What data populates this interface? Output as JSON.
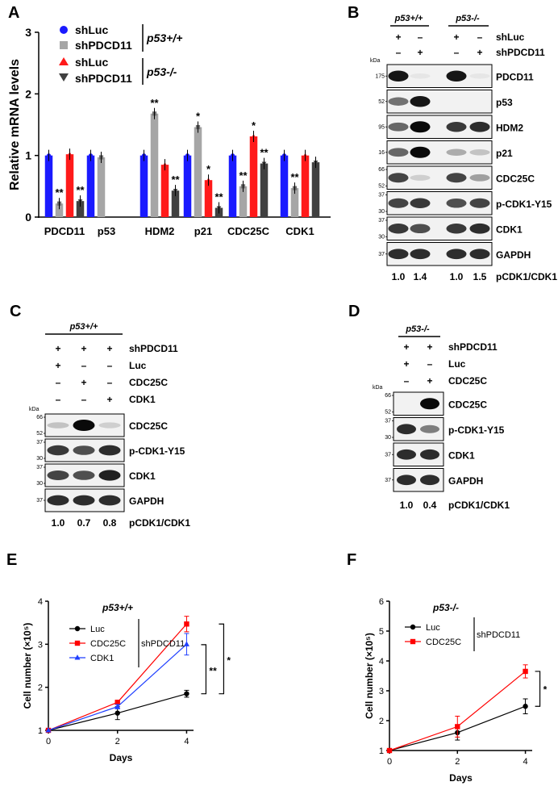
{
  "panels": {
    "A": "A",
    "B": "B",
    "C": "C",
    "D": "D",
    "E": "E",
    "F": "F"
  },
  "panelA": {
    "legend": [
      {
        "name": "shLuc",
        "color": "#1a1aff",
        "marker": "circle"
      },
      {
        "name": "shPDCD11",
        "color": "#a6a6a6",
        "marker": "square"
      },
      {
        "name": "shLuc",
        "color": "#ff1a1a",
        "marker": "triangle-up"
      },
      {
        "name": "shPDCD11",
        "color": "#404040",
        "marker": "triangle-down"
      }
    ],
    "group_labels": [
      "p53+/+",
      "p53-/-"
    ],
    "sig": {
      "double": "**",
      "single": "*"
    }
  },
  "chart_data": [
    {
      "id": "A",
      "type": "bar",
      "ylabel": "Relative mRNA levels",
      "ylim": [
        0,
        3
      ],
      "yticks": [
        0,
        1,
        2,
        3
      ],
      "categories": [
        "PDCD11",
        "p53",
        "HDM2",
        "p21",
        "CDC25C",
        "CDK1"
      ],
      "series": [
        {
          "name": "shLuc",
          "color": "#1a1aff",
          "values": [
            1.0,
            1.0,
            1.0,
            1.0,
            1.0,
            1.0
          ]
        },
        {
          "name": "shPDCD11",
          "color": "#a6a6a6",
          "values": [
            0.22,
            0.97,
            1.68,
            1.46,
            0.5,
            0.47
          ]
        },
        {
          "name": "shLuc",
          "color": "#ff1a1a",
          "values": [
            1.02,
            null,
            0.85,
            0.6,
            1.31,
            1.0
          ]
        },
        {
          "name": "shPDCD11",
          "color": "#404040",
          "values": [
            0.26,
            null,
            0.43,
            0.15,
            0.87,
            0.89
          ]
        }
      ],
      "annotations": [
        {
          "category": "PDCD11",
          "series": 1,
          "text": "**"
        },
        {
          "category": "PDCD11",
          "series": 3,
          "text": "**"
        },
        {
          "category": "HDM2",
          "series": 1,
          "text": "**"
        },
        {
          "category": "HDM2",
          "series": 3,
          "text": "**"
        },
        {
          "category": "p21",
          "series": 1,
          "text": "*"
        },
        {
          "category": "p21",
          "series": 2,
          "text": "*"
        },
        {
          "category": "p21",
          "series": 3,
          "text": "**"
        },
        {
          "category": "CDC25C",
          "series": 1,
          "text": "**"
        },
        {
          "category": "CDC25C",
          "series": 2,
          "text": "*"
        },
        {
          "category": "CDC25C",
          "series": 3,
          "text": "**"
        },
        {
          "category": "CDK1",
          "series": 1,
          "text": "**"
        }
      ]
    },
    {
      "id": "E",
      "type": "line",
      "title": "p53+/+",
      "xlabel": "Days",
      "ylabel": "Cell number (×10⁵)",
      "x": [
        0,
        2,
        4
      ],
      "xlim": [
        0,
        4.2
      ],
      "ylim": [
        1,
        4
      ],
      "xticks": [
        0,
        2,
        4
      ],
      "yticks": [
        1,
        2,
        3,
        4
      ],
      "legend_group": "shPDCD11",
      "series": [
        {
          "name": "Luc",
          "color": "#000000",
          "marker": "circle",
          "values": [
            1.0,
            1.4,
            1.85
          ],
          "err": [
            0,
            0.15,
            0.08
          ]
        },
        {
          "name": "CDC25C",
          "color": "#ff0000",
          "marker": "square",
          "values": [
            1.0,
            1.65,
            3.47
          ],
          "err": [
            0,
            0.05,
            0.18
          ]
        },
        {
          "name": "CDK1",
          "color": "#1f3fff",
          "marker": "triangle-up",
          "values": [
            1.0,
            1.55,
            3.0
          ],
          "err": [
            0,
            0.05,
            0.25
          ]
        }
      ],
      "sig": [
        "**",
        "*"
      ]
    },
    {
      "id": "F",
      "type": "line",
      "title": "p53-/-",
      "xlabel": "Days",
      "ylabel": "Cell number (×10⁵)",
      "x": [
        0,
        2,
        4
      ],
      "xlim": [
        0,
        4.2
      ],
      "ylim": [
        1,
        6
      ],
      "xticks": [
        0,
        2,
        4
      ],
      "yticks": [
        1,
        2,
        3,
        4,
        5,
        6
      ],
      "legend_group": "shPDCD11",
      "series": [
        {
          "name": "Luc",
          "color": "#000000",
          "marker": "circle",
          "values": [
            1.0,
            1.6,
            2.48
          ],
          "err": [
            0,
            0.25,
            0.25
          ]
        },
        {
          "name": "CDC25C",
          "color": "#ff0000",
          "marker": "square",
          "values": [
            1.0,
            1.8,
            3.65
          ],
          "err": [
            0,
            0.35,
            0.22
          ]
        }
      ],
      "sig": [
        "*"
      ]
    }
  ],
  "blotB": {
    "group_labels": [
      "p53+/+",
      "p53-/-"
    ],
    "condition_rows": [
      {
        "label": "shLuc",
        "signs": [
          "+",
          "–",
          "+",
          "–"
        ]
      },
      {
        "label": "shPDCD11",
        "signs": [
          "–",
          "+",
          "–",
          "+"
        ]
      }
    ],
    "kda_title": "kDa",
    "rows": [
      {
        "label": "PDCD11",
        "markers": [
          "175"
        ],
        "bands": [
          0.95,
          0.05,
          0.95,
          0.05
        ]
      },
      {
        "label": "p53",
        "markers": [
          "52"
        ],
        "bands": [
          0.55,
          0.95,
          0.0,
          0.0
        ]
      },
      {
        "label": "HDM2",
        "markers": [
          "95"
        ],
        "bands": [
          0.6,
          1.0,
          0.8,
          0.85
        ]
      },
      {
        "label": "p21",
        "markers": [
          "16"
        ],
        "bands": [
          0.6,
          1.0,
          0.3,
          0.2
        ]
      },
      {
        "label": "CDC25C",
        "markers": [
          "66",
          "52"
        ],
        "bands": [
          0.75,
          0.15,
          0.75,
          0.35
        ]
      },
      {
        "label": "p-CDK1-Y15",
        "markers": [
          "37",
          "30"
        ],
        "bands": [
          0.75,
          0.8,
          0.7,
          0.75
        ]
      },
      {
        "label": "CDK1",
        "markers": [
          "37",
          "30"
        ],
        "bands": [
          0.8,
          0.7,
          0.8,
          0.85
        ]
      },
      {
        "label": "GAPDH",
        "markers": [
          "37"
        ],
        "bands": [
          0.85,
          0.85,
          0.85,
          0.85
        ]
      }
    ],
    "ratio_label": "pCDK1/CDK1",
    "ratios": [
      "1.0",
      "1.4",
      "1.0",
      "1.5"
    ]
  },
  "blotC": {
    "group_label": "p53+/+",
    "condition_rows": [
      {
        "label": "shPDCD11",
        "signs": [
          "+",
          "+",
          "+"
        ]
      },
      {
        "label": "Luc",
        "signs": [
          "+",
          "–",
          "–"
        ]
      },
      {
        "label": "CDC25C",
        "signs": [
          "–",
          "+",
          "–"
        ]
      },
      {
        "label": "CDK1",
        "signs": [
          "–",
          "–",
          "+"
        ]
      }
    ],
    "kda_title": "kDa",
    "rows": [
      {
        "label": "CDC25C",
        "markers": [
          "66",
          "52"
        ],
        "bands": [
          0.2,
          1.0,
          0.15
        ]
      },
      {
        "label": "p-CDK1-Y15",
        "markers": [
          "37",
          "30"
        ],
        "bands": [
          0.8,
          0.7,
          0.85
        ]
      },
      {
        "label": "CDK1",
        "markers": [
          "37",
          "30"
        ],
        "bands": [
          0.75,
          0.7,
          0.9
        ]
      },
      {
        "label": "GAPDH",
        "markers": [
          "37"
        ],
        "bands": [
          0.85,
          0.85,
          0.85
        ]
      }
    ],
    "ratio_label": "pCDK1/CDK1",
    "ratios": [
      "1.0",
      "0.7",
      "0.8"
    ]
  },
  "blotD": {
    "group_label": "p53-/-",
    "condition_rows": [
      {
        "label": "shPDCD11",
        "signs": [
          "+",
          "+"
        ]
      },
      {
        "label": "Luc",
        "signs": [
          "+",
          "–"
        ]
      },
      {
        "label": "CDC25C",
        "signs": [
          "–",
          "+"
        ]
      }
    ],
    "kda_title": "kDa",
    "rows": [
      {
        "label": "CDC25C",
        "markers": [
          "66",
          "52"
        ],
        "bands": [
          0.0,
          1.0
        ]
      },
      {
        "label": "p-CDK1-Y15",
        "markers": [
          "37",
          "30"
        ],
        "bands": [
          0.85,
          0.5
        ]
      },
      {
        "label": "CDK1",
        "markers": [
          "37"
        ],
        "bands": [
          0.85,
          0.85
        ]
      },
      {
        "label": "GAPDH",
        "markers": [
          "37"
        ],
        "bands": [
          0.85,
          0.85
        ]
      }
    ],
    "ratio_label": "pCDK1/CDK1",
    "ratios": [
      "1.0",
      "0.4"
    ]
  }
}
